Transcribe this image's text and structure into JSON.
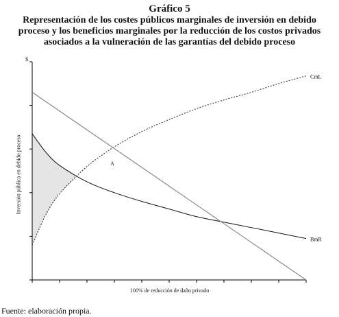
{
  "figure": {
    "number": "Gráfico 5",
    "title": "Representación de los costes públicos marginales de inversión en debido proceso y los beneficios marginales por la reducción de los costos privados asociados a la vulneración de las garantías del debido proceso"
  },
  "source_note": "Fuente: elaboración propia.",
  "chart_data": {
    "type": "line",
    "ylabel": "Inversión pública en debido proceso",
    "xlabel": "100% de reducción de daño privado",
    "y_unit_label": "$",
    "xlim": [
      0,
      10
    ],
    "ylim": [
      0,
      10
    ],
    "x_ticks": 10,
    "y_ticks": 5,
    "grid": false,
    "series": [
      {
        "name": "CmL",
        "style": "dotted",
        "x": [
          0,
          0.5,
          1,
          2,
          3,
          4,
          5,
          6,
          7,
          8,
          9,
          10
        ],
        "y": [
          1.6,
          3.0,
          3.95,
          5.2,
          6.1,
          6.8,
          7.35,
          7.85,
          8.25,
          8.6,
          9.0,
          9.35
        ]
      },
      {
        "name": "BmR",
        "style": "solid",
        "x": [
          0,
          0.5,
          1,
          2,
          3,
          4,
          5,
          6,
          7,
          8,
          9,
          10
        ],
        "y": [
          6.7,
          5.85,
          5.25,
          4.5,
          4.0,
          3.6,
          3.25,
          2.9,
          2.65,
          2.4,
          2.15,
          1.9
        ]
      },
      {
        "name": "",
        "style": "solid-gray",
        "x": [
          0,
          10
        ],
        "y": [
          8.6,
          0
        ]
      }
    ],
    "annotations": [
      {
        "text": "A",
        "x": 3.0,
        "y": 5.15
      }
    ],
    "shaded_region": "between BmR and CmL from x=0 to their intersection"
  }
}
